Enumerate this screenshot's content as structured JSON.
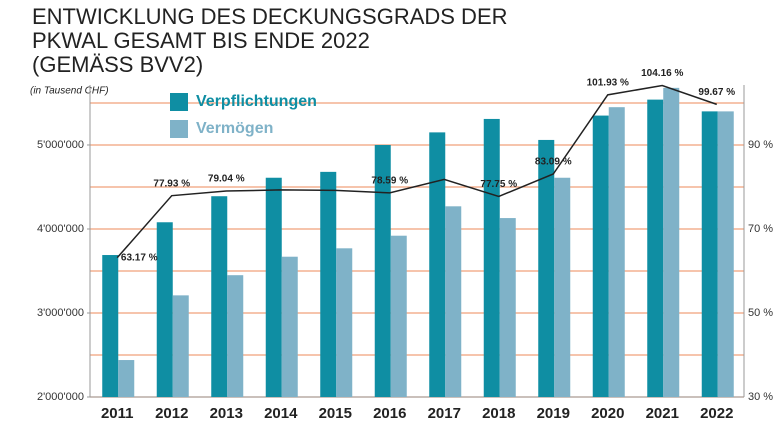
{
  "chart_data": {
    "type": "bar_line",
    "title": "ENTWICKLUNG DES DECKUNGSGRADS DER PKWAL GESAMT BIS ENDE 2022 (GEMÄSS BVV2)",
    "subtitle": "(in Tausend CHF)",
    "categories": [
      "2011",
      "2012",
      "2013",
      "2014",
      "2015",
      "2016",
      "2017",
      "2018",
      "2019",
      "2020",
      "2021",
      "2022"
    ],
    "series": [
      {
        "name": "Verpflichtungen",
        "color": "#0f8ea3",
        "values": [
          3690000,
          4080000,
          4390000,
          4610000,
          4680000,
          5000000,
          5150000,
          5310000,
          5060000,
          5350000,
          5540000,
          5400000
        ]
      },
      {
        "name": "Vermögen",
        "color": "#7fb2c8",
        "values": [
          2440000,
          3210000,
          3450000,
          3670000,
          3770000,
          3920000,
          4270000,
          4130000,
          4610000,
          5450000,
          5680000,
          5400000
        ]
      },
      {
        "type": "line",
        "axis": "y2",
        "color": "#222222",
        "values": [
          63.17,
          77.93,
          79.04,
          79.3,
          79.2,
          78.59,
          81.8,
          77.75,
          83.09,
          101.93,
          104.16,
          99.67
        ],
        "value_labels": [
          "63.17 %",
          "77.93 %",
          "79.04 %",
          null,
          null,
          "78.59 %",
          null,
          "77.75 %",
          "83.09 %",
          "101.93 %",
          "104.16 %",
          "99.67 %"
        ]
      }
    ],
    "ylim": [
      2000000,
      5714000
    ],
    "yticks": [
      {
        "value": 2000000,
        "label": "2'000'000"
      },
      {
        "value": 3000000,
        "label": "3'000'000"
      },
      {
        "value": 4000000,
        "label": "4'000'000"
      },
      {
        "value": 5000000,
        "label": "5'000'000"
      }
    ],
    "y2lim": [
      30,
      104.28
    ],
    "y2ticks": [
      {
        "value": 30,
        "label": "30 %"
      },
      {
        "value": 50,
        "label": "50 %"
      },
      {
        "value": 70,
        "label": "70 %"
      },
      {
        "value": 90,
        "label": "90 %"
      }
    ],
    "y2minor": [
      40,
      60,
      80,
      100
    ],
    "grid": true,
    "grid_color": "#f0a07a",
    "legend": "upper left"
  }
}
